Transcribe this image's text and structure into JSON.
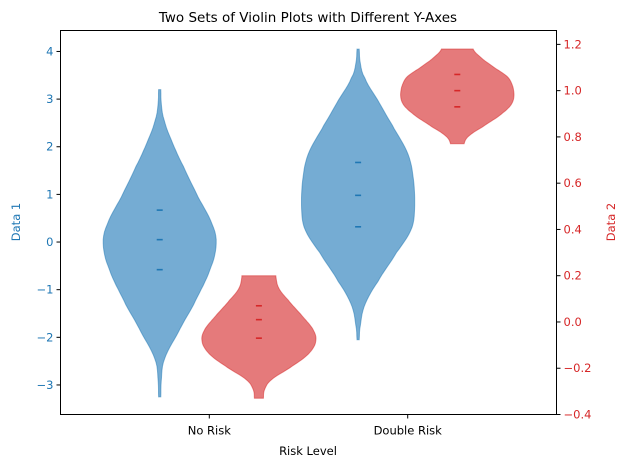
{
  "chart_data": {
    "type": "violin",
    "title": "Two Sets of Violin Plots with Different Y-Axes",
    "xlabel": "Risk Level",
    "categories": [
      "No Risk",
      "Double Risk"
    ],
    "y_axes": [
      {
        "side": "left",
        "label": "Data 1",
        "color": "#1f77b4",
        "ylim": [
          -3.62,
          4.44
        ],
        "ticks": [
          -3,
          -2,
          -1,
          0,
          1,
          2,
          3,
          4
        ],
        "tick_labels": [
          "−3",
          "−2",
          "−1",
          "0",
          "1",
          "2",
          "3",
          "4"
        ]
      },
      {
        "side": "right",
        "label": "Data 2",
        "color": "#d62728",
        "ylim": [
          -0.4,
          1.26
        ],
        "ticks": [
          -0.4,
          -0.2,
          0.0,
          0.2,
          0.4,
          0.6,
          0.8,
          1.0,
          1.2
        ],
        "tick_labels": [
          "−0.4",
          "−0.2",
          "0.0",
          "0.2",
          "0.4",
          "0.6",
          "0.8",
          "1.0",
          "1.2"
        ]
      }
    ],
    "series": [
      {
        "name": "Data 1",
        "axis": "left",
        "color": "#1f77b4",
        "fill": "#75acd3",
        "violins": [
          {
            "category": "No Risk",
            "x_pos": 0.75,
            "min": -3.25,
            "max": 3.2,
            "q1": -0.58,
            "median": 0.05,
            "q3": 0.67
          },
          {
            "category": "Double Risk",
            "x_pos": 1.75,
            "min": -2.05,
            "max": 4.05,
            "q1": 0.32,
            "median": 0.98,
            "q3": 1.67
          }
        ]
      },
      {
        "name": "Data 2",
        "axis": "right",
        "color": "#d62728",
        "fill": "#e57a7b",
        "violins": [
          {
            "category": "No Risk",
            "x_pos": 1.25,
            "min": -0.33,
            "max": 0.2,
            "q1": -0.07,
            "median": 0.01,
            "q3": 0.07
          },
          {
            "category": "Double Risk",
            "x_pos": 2.25,
            "min": 0.77,
            "max": 1.18,
            "q1": 0.93,
            "median": 1.0,
            "q3": 1.07
          }
        ]
      }
    ],
    "grid": false,
    "legend": null
  }
}
